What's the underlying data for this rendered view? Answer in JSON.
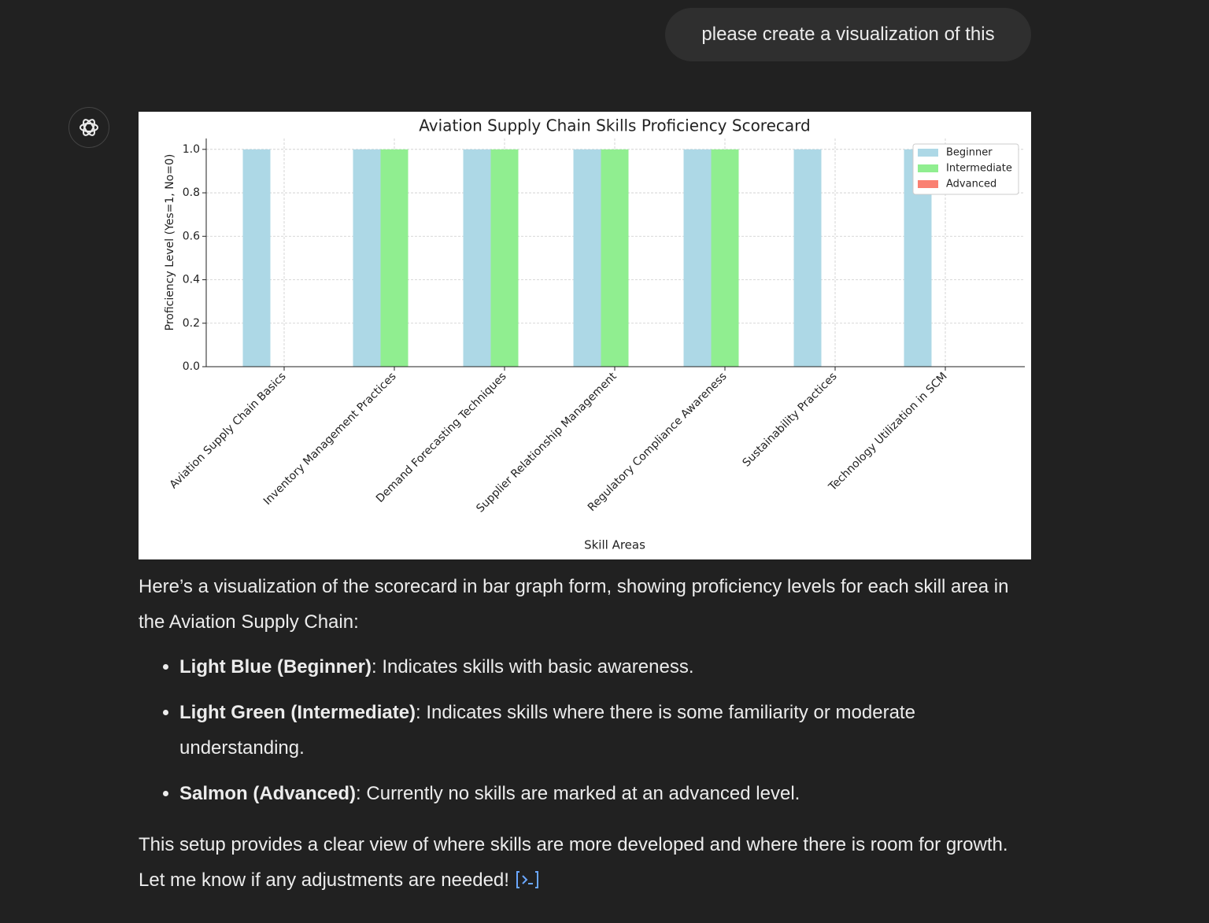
{
  "user_message": "please create a visualization of this",
  "chart_data": {
    "type": "bar",
    "title": "Aviation Supply Chain Skills Proficiency Scorecard",
    "x_label": "Skill Areas",
    "y_label": "Proficiency Level (Yes=1, No=0)",
    "categories": [
      "Aviation Supply Chain Basics",
      "Inventory Management Practices",
      "Demand Forecasting Techniques",
      "Supplier Relationship Management",
      "Regulatory Compliance Awareness",
      "Sustainability Practices",
      "Technology Utilization in SCM"
    ],
    "series": [
      {
        "name": "Beginner",
        "color": "#add8e6",
        "values": [
          1,
          1,
          1,
          1,
          1,
          1,
          1
        ]
      },
      {
        "name": "Intermediate",
        "color": "#90ee90",
        "values": [
          0,
          1,
          1,
          1,
          1,
          0,
          0
        ]
      },
      {
        "name": "Advanced",
        "color": "#fa8072",
        "values": [
          0,
          0,
          0,
          0,
          0,
          0,
          0
        ]
      }
    ],
    "ylim": [
      0,
      1.05
    ],
    "yticks": [
      {
        "value": 0,
        "label": "0.0"
      },
      0.2,
      0.4,
      0.6,
      0.8,
      {
        "value": 1,
        "label": "1.0"
      }
    ],
    "grid": true,
    "legend": "upper right"
  },
  "response": {
    "intro": "Here’s a visualization of the scorecard in bar graph form, showing proficiency levels for each skill area in the Aviation Supply Chain:",
    "bullets": [
      {
        "label": "Light Blue (Beginner)",
        "text": ": Indicates skills with basic awareness."
      },
      {
        "label": "Light Green (Intermediate)",
        "text": ": Indicates skills where there is some familiarity or moderate understanding."
      },
      {
        "label": "Salmon (Advanced)",
        "text": ": Currently no skills are marked at an advanced level."
      }
    ],
    "closing": "This setup provides a clear view of where skills are more developed and where there is room for growth. Let me know if any adjustments are needed!"
  }
}
